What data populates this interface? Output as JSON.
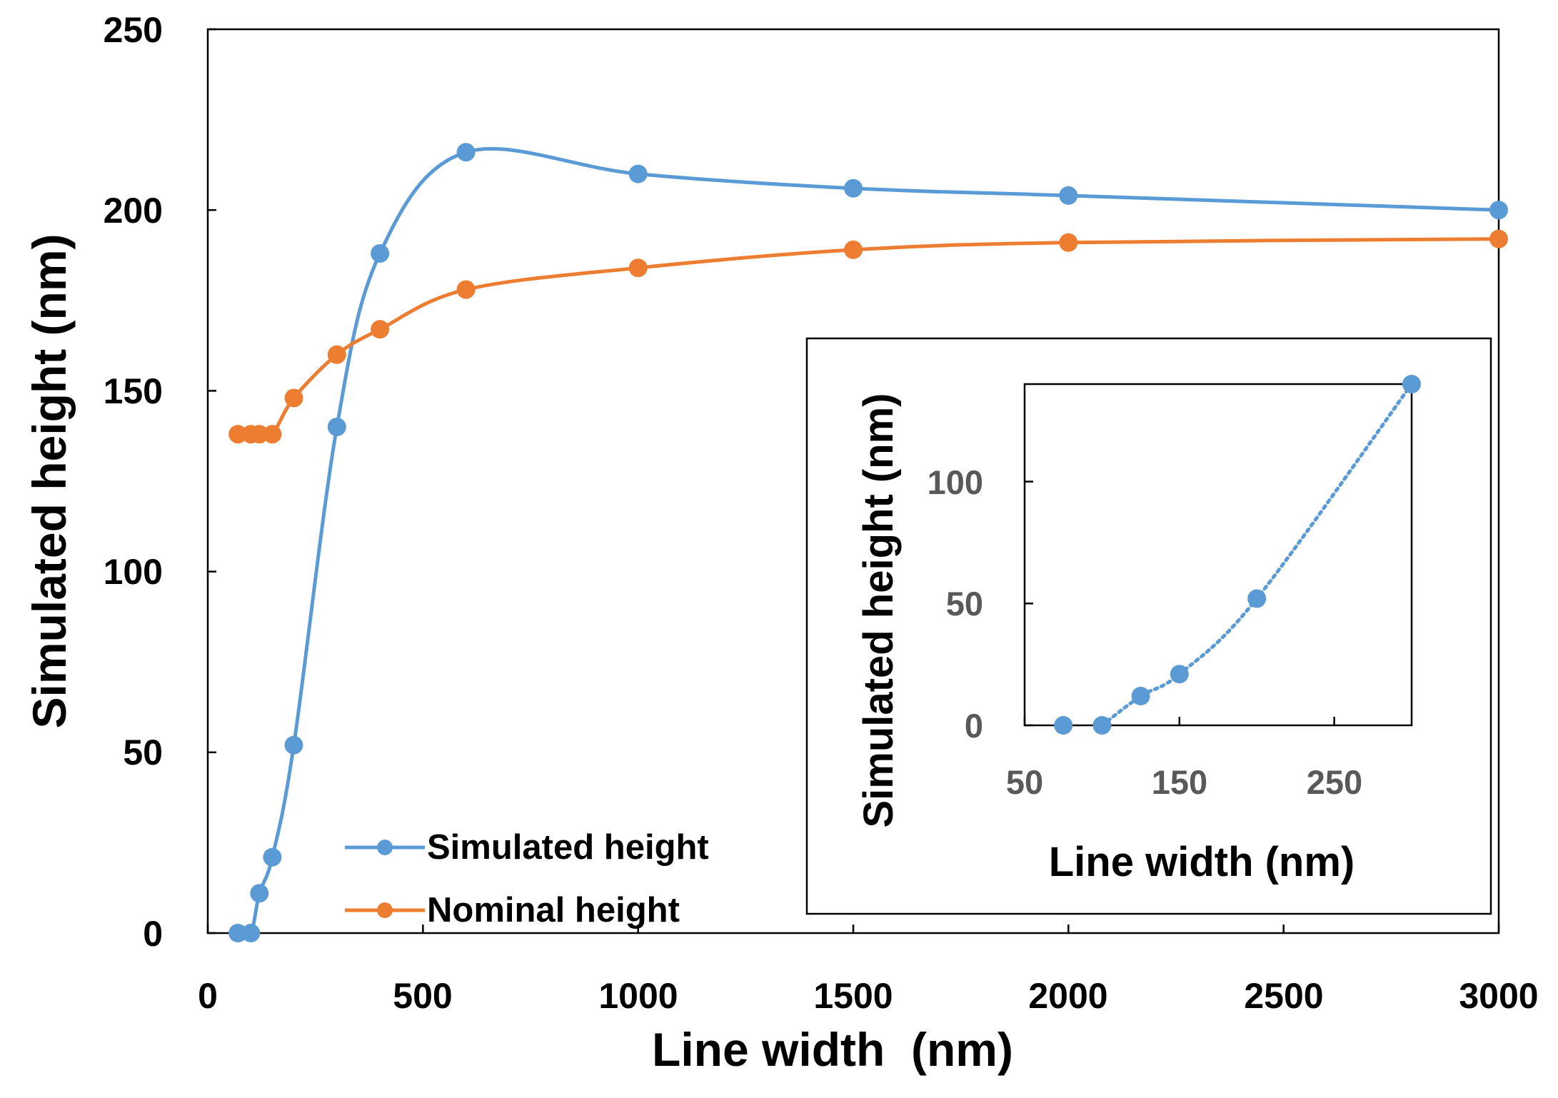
{
  "chart_data": [
    {
      "type": "line",
      "title": "",
      "xlabel": "Line width  (nm)",
      "ylabel": "Simulated height (nm)",
      "xlim": [
        0,
        3000
      ],
      "ylim": [
        0,
        250
      ],
      "x_ticks": [
        "0",
        "500",
        "1000",
        "1500",
        "2000",
        "2500",
        "3000"
      ],
      "y_ticks": [
        "0",
        "50",
        "100",
        "150",
        "200",
        "250"
      ],
      "grid": false,
      "legend_position": "lower-left-center",
      "series": [
        {
          "name": "Simulated height",
          "color": "#5B9BD5",
          "marker": "circle",
          "smooth": true,
          "x": [
            70,
            100,
            120,
            150,
            200,
            300,
            400,
            600,
            1000,
            1500,
            2000,
            3000
          ],
          "y": [
            0,
            0,
            11,
            21,
            52,
            140,
            188,
            216,
            210,
            206,
            204,
            200
          ]
        },
        {
          "name": "Nominal height",
          "color": "#ED7D31",
          "marker": "circle",
          "smooth": true,
          "x": [
            70,
            100,
            120,
            150,
            200,
            300,
            400,
            600,
            1000,
            1500,
            2000,
            3000
          ],
          "y": [
            138,
            138,
            138,
            138,
            148,
            160,
            167,
            178,
            184,
            189,
            191,
            192
          ]
        }
      ]
    },
    {
      "type": "scatter",
      "title": "",
      "xlabel": "Line width (nm)",
      "ylabel": "Simulated height (nm)",
      "xlim": [
        50,
        300
      ],
      "ylim": [
        0,
        140
      ],
      "x_ticks": [
        "50",
        "150",
        "250"
      ],
      "y_ticks": [
        "0",
        "50",
        "100"
      ],
      "grid": false,
      "series": [
        {
          "name": "Simulated height",
          "color": "#5B9BD5",
          "marker": "circle",
          "line_style": "dotted",
          "x": [
            75,
            100,
            125,
            150,
            200,
            300
          ],
          "y": [
            0,
            0,
            12,
            21,
            52,
            140
          ]
        }
      ]
    }
  ]
}
